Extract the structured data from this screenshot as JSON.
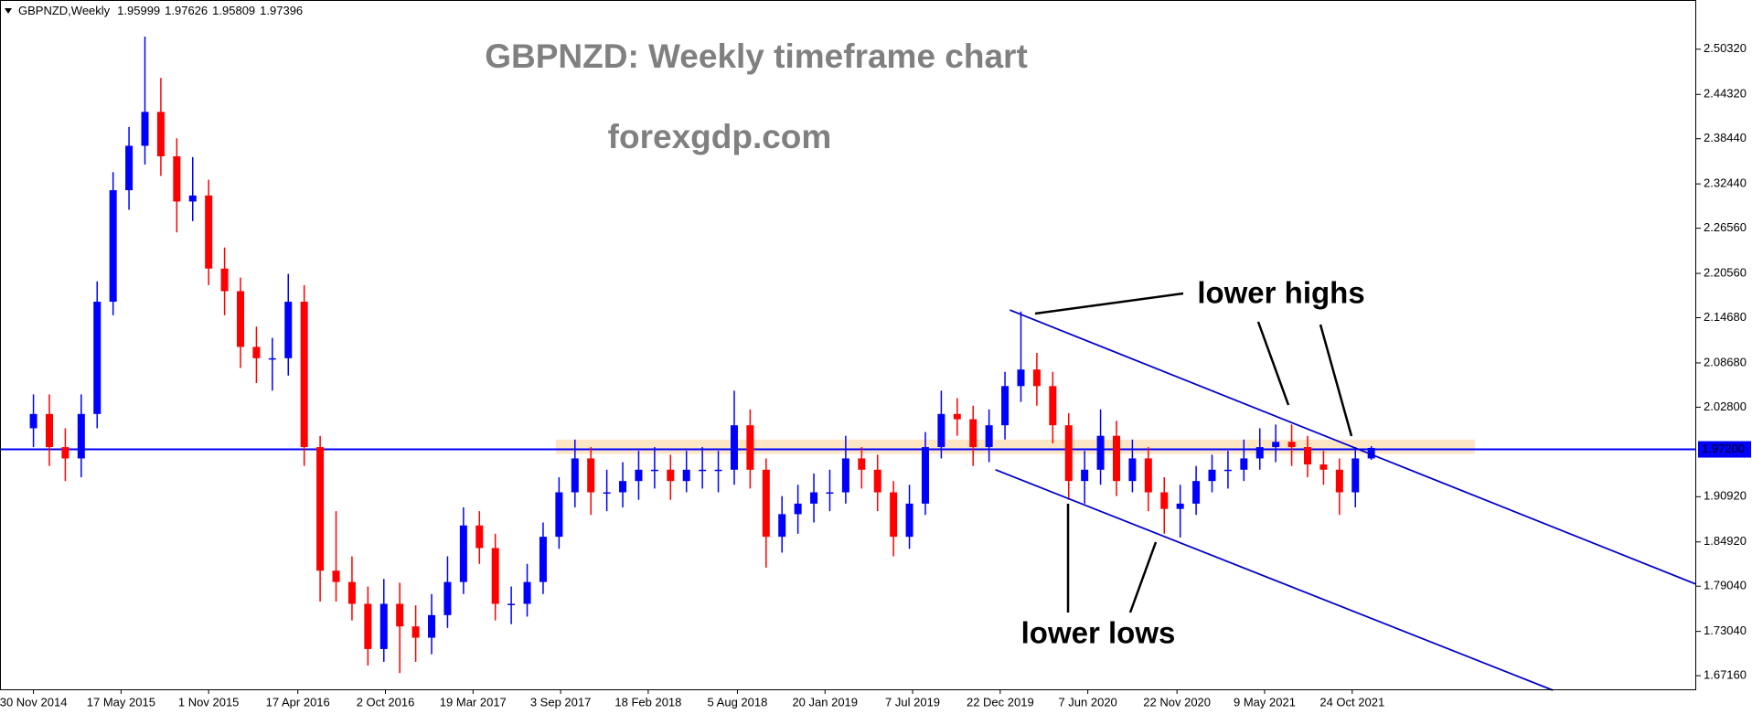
{
  "chart_data": {
    "type": "candlestick",
    "symbol": "GBPNZD,Weekly",
    "title": "GBPNZD: Weekly timeframe chart",
    "subtitle": "forexgdp.com",
    "annotations": [
      "lower highs",
      "lower lows"
    ],
    "bull_color": "#0000ff",
    "bear_color": "#ff0000",
    "x": [
      0,
      1,
      2,
      3,
      4,
      5,
      6,
      7,
      8,
      9,
      10,
      11,
      12,
      13,
      14,
      15,
      16,
      17,
      18,
      19,
      20,
      21,
      22,
      23,
      24,
      25,
      26,
      27,
      28,
      29,
      30,
      31,
      32,
      33,
      34,
      35,
      36,
      37,
      38,
      39,
      40,
      41,
      42,
      43,
      44,
      45,
      46,
      47,
      48,
      49,
      50,
      51,
      52,
      53,
      54,
      55,
      56,
      57,
      58,
      59,
      60,
      61,
      62,
      63,
      64,
      65,
      66,
      67,
      68,
      69,
      70,
      71,
      72,
      73,
      74,
      75,
      76,
      77,
      78,
      79,
      80,
      81,
      82,
      83,
      84
    ],
    "candles": {
      "open": [
        2.0,
        2.019,
        1.975,
        1.96,
        2.019,
        2.168,
        2.316,
        2.375,
        2.42,
        2.361,
        2.301,
        2.309,
        2.212,
        2.182,
        2.108,
        2.093,
        2.093,
        2.168,
        1.975,
        1.811,
        1.796,
        1.767,
        1.707,
        1.767,
        1.737,
        1.722,
        1.752,
        1.796,
        1.871,
        1.841,
        1.767,
        1.767,
        1.796,
        1.856,
        1.915,
        1.96,
        1.915,
        1.915,
        1.93,
        1.945,
        1.945,
        1.93,
        1.945,
        1.945,
        1.945,
        2.004,
        1.945,
        1.856,
        1.886,
        1.9,
        1.915,
        1.915,
        1.96,
        1.945,
        1.915,
        1.856,
        1.9,
        1.975,
        2.019,
        2.012,
        1.975,
        2.004,
        2.056,
        2.078,
        2.056,
        2.004,
        1.93,
        1.945,
        1.99,
        1.93,
        1.96,
        1.915,
        1.893,
        1.9,
        1.93,
        1.945,
        1.945,
        1.96,
        1.975,
        1.982,
        1.975,
        1.952,
        1.945,
        1.915,
        1.95999
      ],
      "high": [
        2.045,
        2.045,
        2.0,
        2.045,
        2.195,
        2.34,
        2.4,
        2.52,
        2.465,
        2.385,
        2.36,
        2.33,
        2.24,
        2.2,
        2.135,
        2.12,
        2.205,
        2.19,
        1.99,
        1.89,
        1.83,
        1.79,
        1.8,
        1.795,
        1.765,
        1.78,
        1.83,
        1.895,
        1.89,
        1.86,
        1.79,
        1.82,
        1.875,
        1.935,
        1.985,
        1.975,
        1.945,
        1.955,
        1.97,
        1.975,
        1.965,
        1.97,
        1.975,
        1.97,
        2.05,
        2.025,
        1.96,
        1.91,
        1.925,
        1.94,
        1.945,
        1.99,
        1.975,
        1.965,
        1.93,
        1.925,
        1.995,
        2.05,
        2.04,
        2.03,
        2.025,
        2.075,
        2.155,
        2.1,
        2.075,
        2.02,
        1.97,
        2.025,
        2.01,
        1.985,
        1.975,
        1.935,
        1.925,
        1.95,
        1.965,
        1.97,
        1.985,
        2.0,
        2.005,
        2.005,
        1.99,
        1.97,
        1.96,
        1.975,
        1.97626
      ],
      "low": [
        1.975,
        1.95,
        1.93,
        1.935,
        2.0,
        2.15,
        2.29,
        2.35,
        2.335,
        2.26,
        2.275,
        2.19,
        2.15,
        2.08,
        2.06,
        2.05,
        2.07,
        1.95,
        1.77,
        1.77,
        1.745,
        1.685,
        1.69,
        1.675,
        1.69,
        1.7,
        1.735,
        1.78,
        1.82,
        1.745,
        1.74,
        1.75,
        1.78,
        1.84,
        1.895,
        1.885,
        1.89,
        1.895,
        1.905,
        1.92,
        1.905,
        1.915,
        1.92,
        1.915,
        1.925,
        1.92,
        1.815,
        1.835,
        1.86,
        1.875,
        1.89,
        1.9,
        1.92,
        1.89,
        1.83,
        1.84,
        1.885,
        1.96,
        1.99,
        1.95,
        1.955,
        1.985,
        2.035,
        2.03,
        1.98,
        1.905,
        1.9,
        1.925,
        1.91,
        1.915,
        1.89,
        1.86,
        1.855,
        1.885,
        1.915,
        1.92,
        1.93,
        1.945,
        1.955,
        1.95,
        1.935,
        1.925,
        1.885,
        1.895,
        1.95809
      ],
      "close": [
        2.019,
        1.975,
        1.96,
        2.019,
        2.168,
        2.316,
        2.375,
        2.42,
        2.361,
        2.301,
        2.309,
        2.212,
        2.182,
        2.108,
        2.093,
        2.093,
        2.168,
        1.975,
        1.811,
        1.796,
        1.767,
        1.707,
        1.767,
        1.737,
        1.722,
        1.752,
        1.796,
        1.871,
        1.841,
        1.767,
        1.767,
        1.796,
        1.856,
        1.915,
        1.96,
        1.915,
        1.915,
        1.93,
        1.945,
        1.945,
        1.93,
        1.945,
        1.945,
        1.945,
        2.004,
        1.945,
        1.856,
        1.886,
        1.9,
        1.915,
        1.915,
        1.96,
        1.945,
        1.915,
        1.856,
        1.9,
        1.975,
        2.019,
        2.012,
        1.975,
        2.004,
        2.056,
        2.078,
        2.056,
        2.004,
        1.93,
        1.945,
        1.99,
        1.93,
        1.96,
        1.915,
        1.893,
        1.9,
        1.93,
        1.945,
        1.945,
        1.96,
        1.975,
        1.982,
        1.975,
        1.952,
        1.945,
        1.915,
        1.96,
        1.97396
      ]
    },
    "xlim": [
      -2.1,
      104.4
    ],
    "xticks": [
      {
        "value": 0,
        "label": "30 Nov 2014"
      },
      {
        "value": 5.5,
        "label": "17 May 2015"
      },
      {
        "value": 11,
        "label": "1 Nov 2015"
      },
      {
        "value": 16.6,
        "label": "17 Apr 2016"
      },
      {
        "value": 22.1,
        "label": "2 Oct 2016"
      },
      {
        "value": 27.6,
        "label": "19 Mar 2017"
      },
      {
        "value": 33.1,
        "label": "3 Sep 2017"
      },
      {
        "value": 38.6,
        "label": "18 Feb 2018"
      },
      {
        "value": 44.2,
        "label": "5 Aug 2018"
      },
      {
        "value": 49.7,
        "label": "20 Jan 2019"
      },
      {
        "value": 55.2,
        "label": "7 Jul 2019"
      },
      {
        "value": 60.7,
        "label": "22 Dec 2019"
      },
      {
        "value": 66.2,
        "label": "7 Jun 2020"
      },
      {
        "value": 71.8,
        "label": "22 Nov 2020"
      },
      {
        "value": 77.3,
        "label": "9 May 2021"
      },
      {
        "value": 82.8,
        "label": "24 Oct 2021"
      }
    ],
    "ylim": [
      1.6523,
      2.5685
    ],
    "yticks": [
      {
        "value": 2.5032,
        "label": "2.50320"
      },
      {
        "value": 2.4432,
        "label": "2.44320"
      },
      {
        "value": 2.3844,
        "label": "2.38440"
      },
      {
        "value": 2.3244,
        "label": "2.32440"
      },
      {
        "value": 2.2656,
        "label": "2.26560"
      },
      {
        "value": 2.2056,
        "label": "2.20560"
      },
      {
        "value": 2.1468,
        "label": "2.14680"
      },
      {
        "value": 2.0868,
        "label": "2.08680"
      },
      {
        "value": 2.028,
        "label": "2.02800"
      },
      {
        "value": 1.9092,
        "label": "1.90920"
      },
      {
        "value": 1.8492,
        "label": "1.84920"
      },
      {
        "value": 1.7904,
        "label": "1.79040"
      },
      {
        "value": 1.7304,
        "label": "1.73040"
      },
      {
        "value": 1.6716,
        "label": "1.67160"
      }
    ],
    "hline": {
      "value": 1.972,
      "label": "1.97200",
      "color": "#0000ff"
    },
    "zone": {
      "x": [
        32.8,
        90.5
      ],
      "y": [
        1.966,
        1.985
      ],
      "color": "#fde3c0"
    },
    "trendlines": [
      {
        "x": [
          61.3,
          104.4
        ],
        "y": [
          2.157,
          1.793
        ],
        "color": "#0000cc"
      },
      {
        "x": [
          60.4,
          95.4
        ],
        "y": [
          1.945,
          1.6523
        ],
        "color": "#0000cc"
      }
    ]
  }
}
